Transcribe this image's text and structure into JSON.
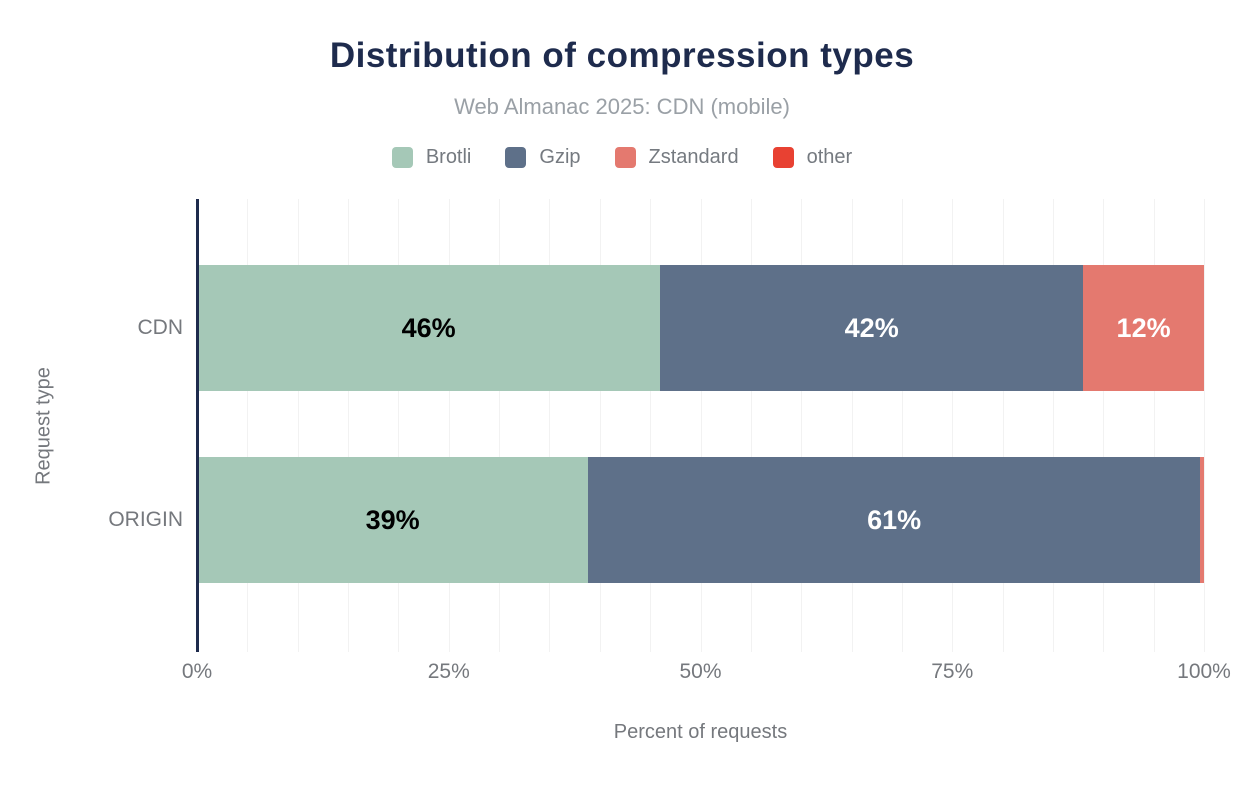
{
  "header": {
    "title": "Distribution of compression types",
    "subtitle": "Web Almanac 2025: CDN (mobile)"
  },
  "chart_data": {
    "type": "bar",
    "orientation": "horizontal",
    "stacked": true,
    "title": "Distribution of compression types",
    "subtitle": "Web Almanac 2025: CDN (mobile)",
    "xlabel": "Percent of requests",
    "ylabel": "Request type",
    "categories": [
      "CDN",
      "ORIGIN"
    ],
    "series": [
      {
        "name": "Brotli",
        "color": "#a5c8b7",
        "label_text_color": "#000000",
        "values": [
          46,
          39
        ]
      },
      {
        "name": "Gzip",
        "color": "#5e7089",
        "label_text_color": "#ffffff",
        "values": [
          42,
          61
        ]
      },
      {
        "name": "Zstandard",
        "color": "#e4796f",
        "label_text_color": "#ffffff",
        "values": [
          12,
          0.4
        ]
      },
      {
        "name": "other",
        "color": "#e84132",
        "label_text_color": "#ffffff",
        "values": [
          0,
          0
        ]
      }
    ],
    "x_ticks": [
      {
        "label": "0%",
        "value": 0
      },
      {
        "label": "25%",
        "value": 25
      },
      {
        "label": "50%",
        "value": 50
      },
      {
        "label": "75%",
        "value": 75
      },
      {
        "label": "100%",
        "value": 100
      }
    ],
    "xlim": [
      0,
      100
    ],
    "grid": {
      "show": true,
      "step": 5,
      "color": "#f2f2f2"
    },
    "legend_position": "top",
    "label_min_value": 5,
    "label_suffix": "%",
    "axis_color": "#1e2b4d"
  },
  "styles": {
    "title_color": "#1e2b4d",
    "subtitle_color": "#9aa0a6",
    "text_color": "#75787d",
    "background": "#ffffff"
  }
}
